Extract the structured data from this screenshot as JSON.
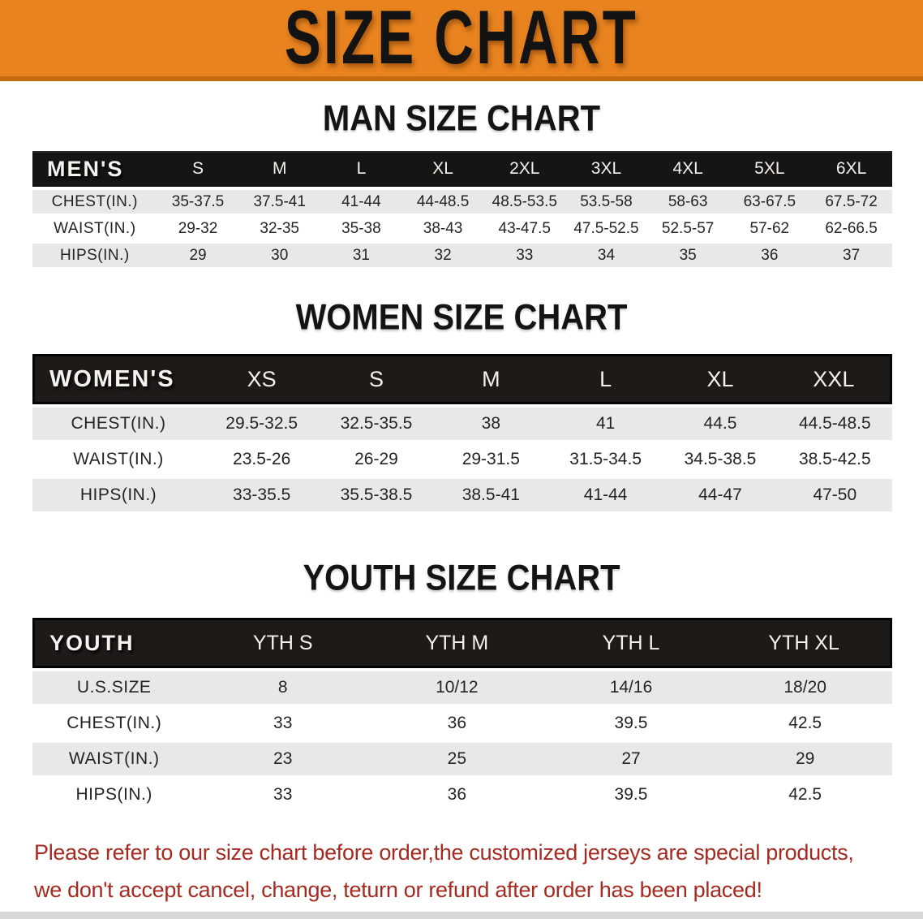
{
  "banner": {
    "title": "SIZE CHART"
  },
  "sections": [
    {
      "title": "MAN SIZE CHART",
      "corner": "MEN'S",
      "columns": [
        "S",
        "M",
        "L",
        "XL",
        "2XL",
        "3XL",
        "4XL",
        "5XL",
        "6XL"
      ],
      "rows": [
        {
          "label": "CHEST(IN.)",
          "values": [
            "35-37.5",
            "37.5-41",
            "41-44",
            "44-48.5",
            "48.5-53.5",
            "53.5-58",
            "58-63",
            "63-67.5",
            "67.5-72"
          ]
        },
        {
          "label": "WAIST(IN.)",
          "values": [
            "29-32",
            "32-35",
            "35-38",
            "38-43",
            "43-47.5",
            "47.5-52.5",
            "52.5-57",
            "57-62",
            "62-66.5"
          ]
        },
        {
          "label": "HIPS(IN.)",
          "values": [
            "29",
            "30",
            "31",
            "32",
            "33",
            "34",
            "35",
            "36",
            "37"
          ]
        }
      ]
    },
    {
      "title": "WOMEN SIZE CHART",
      "corner": "WOMEN'S",
      "columns": [
        "XS",
        "S",
        "M",
        "L",
        "XL",
        "XXL"
      ],
      "rows": [
        {
          "label": "CHEST(IN.)",
          "values": [
            "29.5-32.5",
            "32.5-35.5",
            "38",
            "41",
            "44.5",
            "44.5-48.5"
          ]
        },
        {
          "label": "WAIST(IN.)",
          "values": [
            "23.5-26",
            "26-29",
            "29-31.5",
            "31.5-34.5",
            "34.5-38.5",
            "38.5-42.5"
          ]
        },
        {
          "label": "HIPS(IN.)",
          "values": [
            "33-35.5",
            "35.5-38.5",
            "38.5-41",
            "41-44",
            "44-47",
            "47-50"
          ]
        }
      ]
    },
    {
      "title": "YOUTH SIZE CHART",
      "corner": "YOUTH",
      "columns": [
        "YTH S",
        "YTH M",
        "YTH L",
        "YTH XL"
      ],
      "rows": [
        {
          "label": "U.S.SIZE",
          "values": [
            "8",
            "10/12",
            "14/16",
            "18/20"
          ]
        },
        {
          "label": "CHEST(IN.)",
          "values": [
            "33",
            "36",
            "39.5",
            "42.5"
          ]
        },
        {
          "label": "WAIST(IN.)",
          "values": [
            "23",
            "25",
            "27",
            "29"
          ]
        },
        {
          "label": "HIPS(IN.)",
          "values": [
            "33",
            "36",
            "39.5",
            "42.5"
          ]
        }
      ]
    }
  ],
  "disclaimer": {
    "lines": [
      "Please refer to our size chart before order,the customized jerseys are special products,",
      "we don't accept cancel, change, teturn or refund after order has been placed!"
    ]
  },
  "colors": {
    "banner_bg": "#e8831f",
    "banner_border": "#c76b10",
    "banner_text": "#131313",
    "table_header_bg": "#1d1a18",
    "table_stripe_bg": "#e8e8e8",
    "disclaimer_text": "#a8291f",
    "bottom_strip": "#d7d7d7"
  }
}
